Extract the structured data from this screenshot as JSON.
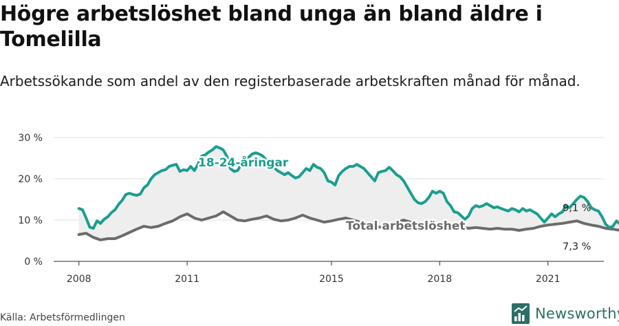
{
  "page": {
    "title": "Högre arbetslöshet bland unga än bland äldre i Tomelilla",
    "subtitle": "Arbetssökande som andel av den registerbaserade arbetskraften månad för månad.",
    "source": "Källa: Arbetsförmedlingen",
    "brand": "Newsworthy"
  },
  "colors": {
    "youth": "#1a9e8f",
    "total": "#6b6b6b",
    "fill": "#eeeeee",
    "grid": "#e1e1e1",
    "brand": "#2b6f66"
  },
  "icons": {
    "brand_logo": "newsworthy-logo-icon"
  },
  "chart_data": {
    "type": "line",
    "x_unit": "year (decimal)",
    "ylim": [
      0,
      30
    ],
    "y_ticks": [
      0,
      10,
      20,
      30
    ],
    "y_tick_labels": [
      "0 %",
      "10 %",
      "20 %",
      "30 %"
    ],
    "x_ticks": [
      2008,
      2011,
      2015,
      2018,
      2021
    ],
    "x_tick_labels": [
      "2008",
      "2011",
      "2015",
      "2018",
      "2021"
    ],
    "xlim": [
      2007.3,
      2022.55
    ],
    "grid": true,
    "area_between_series": true,
    "series": [
      {
        "name": "18-24-åringar",
        "end_label": "9,1 %",
        "points": [
          [
            2008.0,
            12.8
          ],
          [
            2008.1,
            12.5
          ],
          [
            2008.2,
            10.5
          ],
          [
            2008.3,
            8.3
          ],
          [
            2008.4,
            8.0
          ],
          [
            2008.5,
            9.8
          ],
          [
            2008.6,
            9.2
          ],
          [
            2008.7,
            10.2
          ],
          [
            2008.8,
            10.8
          ],
          [
            2008.9,
            11.8
          ],
          [
            2009.0,
            12.5
          ],
          [
            2009.1,
            13.8
          ],
          [
            2009.2,
            14.8
          ],
          [
            2009.3,
            16.2
          ],
          [
            2009.4,
            16.5
          ],
          [
            2009.5,
            16.2
          ],
          [
            2009.6,
            16.0
          ],
          [
            2009.7,
            16.3
          ],
          [
            2009.8,
            17.8
          ],
          [
            2009.9,
            18.5
          ],
          [
            2010.0,
            20.0
          ],
          [
            2010.1,
            21.0
          ],
          [
            2010.2,
            21.5
          ],
          [
            2010.3,
            22.0
          ],
          [
            2010.4,
            22.2
          ],
          [
            2010.5,
            23.0
          ],
          [
            2010.6,
            23.3
          ],
          [
            2010.7,
            23.5
          ],
          [
            2010.8,
            21.8
          ],
          [
            2010.9,
            22.2
          ],
          [
            2011.0,
            22.0
          ],
          [
            2011.1,
            23.0
          ],
          [
            2011.2,
            22.0
          ],
          [
            2011.3,
            23.5
          ],
          [
            2011.4,
            25.5
          ],
          [
            2011.5,
            25.8
          ],
          [
            2011.6,
            26.5
          ],
          [
            2011.7,
            27.0
          ],
          [
            2011.8,
            27.8
          ],
          [
            2011.9,
            27.5
          ],
          [
            2012.0,
            27.0
          ],
          [
            2012.1,
            25.5
          ],
          [
            2012.2,
            22.5
          ],
          [
            2012.3,
            21.8
          ],
          [
            2012.4,
            22.0
          ],
          [
            2012.5,
            23.5
          ],
          [
            2012.6,
            24.8
          ],
          [
            2012.7,
            25.2
          ],
          [
            2012.8,
            26.0
          ],
          [
            2012.9,
            26.3
          ],
          [
            2013.0,
            26.0
          ],
          [
            2013.1,
            25.5
          ],
          [
            2013.2,
            24.5
          ],
          [
            2013.3,
            23.5
          ],
          [
            2013.4,
            22.8
          ],
          [
            2013.5,
            22.0
          ],
          [
            2013.6,
            21.5
          ],
          [
            2013.7,
            21.0
          ],
          [
            2013.8,
            21.5
          ],
          [
            2013.9,
            20.8
          ],
          [
            2014.0,
            20.2
          ],
          [
            2014.1,
            20.5
          ],
          [
            2014.2,
            21.5
          ],
          [
            2014.3,
            22.5
          ],
          [
            2014.4,
            22.0
          ],
          [
            2014.5,
            23.5
          ],
          [
            2014.6,
            22.8
          ],
          [
            2014.7,
            22.5
          ],
          [
            2014.8,
            21.5
          ],
          [
            2014.9,
            19.5
          ],
          [
            2015.0,
            19.2
          ],
          [
            2015.1,
            18.5
          ],
          [
            2015.2,
            20.8
          ],
          [
            2015.3,
            21.8
          ],
          [
            2015.4,
            22.5
          ],
          [
            2015.5,
            23.0
          ],
          [
            2015.6,
            23.0
          ],
          [
            2015.7,
            23.5
          ],
          [
            2015.8,
            23.0
          ],
          [
            2015.9,
            22.5
          ],
          [
            2016.0,
            21.5
          ],
          [
            2016.1,
            20.5
          ],
          [
            2016.2,
            19.5
          ],
          [
            2016.3,
            21.5
          ],
          [
            2016.4,
            21.8
          ],
          [
            2016.5,
            22.0
          ],
          [
            2016.6,
            22.8
          ],
          [
            2016.7,
            22.0
          ],
          [
            2016.8,
            21.0
          ],
          [
            2016.9,
            20.5
          ],
          [
            2017.0,
            19.5
          ],
          [
            2017.1,
            18.0
          ],
          [
            2017.2,
            16.5
          ],
          [
            2017.3,
            15.0
          ],
          [
            2017.4,
            14.2
          ],
          [
            2017.5,
            14.0
          ],
          [
            2017.6,
            14.5
          ],
          [
            2017.7,
            15.5
          ],
          [
            2017.8,
            17.0
          ],
          [
            2017.9,
            16.5
          ],
          [
            2018.0,
            17.0
          ],
          [
            2018.1,
            16.5
          ],
          [
            2018.2,
            14.5
          ],
          [
            2018.3,
            13.5
          ],
          [
            2018.4,
            12.0
          ],
          [
            2018.5,
            11.8
          ],
          [
            2018.6,
            11.0
          ],
          [
            2018.7,
            10.2
          ],
          [
            2018.8,
            11.0
          ],
          [
            2018.9,
            12.8
          ],
          [
            2019.0,
            13.5
          ],
          [
            2019.1,
            13.2
          ],
          [
            2019.2,
            13.5
          ],
          [
            2019.3,
            14.0
          ],
          [
            2019.4,
            13.5
          ],
          [
            2019.5,
            13.0
          ],
          [
            2019.6,
            13.2
          ],
          [
            2019.7,
            12.8
          ],
          [
            2019.8,
            12.5
          ],
          [
            2019.9,
            12.2
          ],
          [
            2020.0,
            12.8
          ],
          [
            2020.1,
            12.5
          ],
          [
            2020.2,
            12.0
          ],
          [
            2020.3,
            12.8
          ],
          [
            2020.4,
            12.2
          ],
          [
            2020.5,
            12.5
          ],
          [
            2020.6,
            12.0
          ],
          [
            2020.7,
            11.5
          ],
          [
            2020.8,
            10.5
          ],
          [
            2020.9,
            9.5
          ],
          [
            2021.0,
            10.5
          ],
          [
            2021.1,
            11.5
          ],
          [
            2021.2,
            10.8
          ],
          [
            2021.3,
            11.5
          ],
          [
            2021.4,
            12.0
          ],
          [
            2021.5,
            13.5
          ],
          [
            2021.6,
            13.0
          ],
          [
            2021.7,
            14.0
          ],
          [
            2021.8,
            15.0
          ],
          [
            2021.9,
            15.8
          ],
          [
            2022.0,
            15.5
          ],
          [
            2022.1,
            14.5
          ],
          [
            2022.2,
            13.0
          ],
          [
            2022.3,
            12.5
          ],
          [
            2022.4,
            12.2
          ],
          [
            2022.5,
            10.8
          ],
          [
            2022.6,
            9.0
          ],
          [
            2022.7,
            8.2
          ],
          [
            2022.8,
            8.5
          ],
          [
            2022.9,
            9.8
          ],
          [
            2023.0,
            9.0
          ],
          [
            2023.1,
            8.5
          ],
          [
            2023.2,
            8.6
          ],
          [
            2023.3,
            9.1
          ]
        ]
      },
      {
        "name": "Total arbetslöshet",
        "end_label": "7,3 %",
        "points": [
          [
            2008.0,
            6.5
          ],
          [
            2008.2,
            6.8
          ],
          [
            2008.4,
            5.8
          ],
          [
            2008.6,
            5.2
          ],
          [
            2008.8,
            5.5
          ],
          [
            2009.0,
            5.5
          ],
          [
            2009.2,
            6.2
          ],
          [
            2009.4,
            7.0
          ],
          [
            2009.6,
            7.8
          ],
          [
            2009.8,
            8.5
          ],
          [
            2010.0,
            8.2
          ],
          [
            2010.2,
            8.5
          ],
          [
            2010.4,
            9.2
          ],
          [
            2010.6,
            9.8
          ],
          [
            2010.8,
            10.8
          ],
          [
            2011.0,
            11.5
          ],
          [
            2011.2,
            10.5
          ],
          [
            2011.4,
            10.0
          ],
          [
            2011.6,
            10.5
          ],
          [
            2011.8,
            11.0
          ],
          [
            2012.0,
            12.0
          ],
          [
            2012.2,
            11.0
          ],
          [
            2012.4,
            10.0
          ],
          [
            2012.6,
            9.8
          ],
          [
            2012.8,
            10.2
          ],
          [
            2013.0,
            10.5
          ],
          [
            2013.2,
            11.0
          ],
          [
            2013.4,
            10.2
          ],
          [
            2013.6,
            9.8
          ],
          [
            2013.8,
            10.0
          ],
          [
            2014.0,
            10.5
          ],
          [
            2014.2,
            11.2
          ],
          [
            2014.4,
            10.5
          ],
          [
            2014.6,
            10.0
          ],
          [
            2014.8,
            9.5
          ],
          [
            2015.0,
            9.8
          ],
          [
            2015.2,
            10.2
          ],
          [
            2015.4,
            10.5
          ],
          [
            2015.6,
            10.0
          ],
          [
            2015.8,
            9.5
          ],
          [
            2016.0,
            9.0
          ],
          [
            2016.2,
            8.5
          ],
          [
            2016.4,
            8.2
          ],
          [
            2016.6,
            9.0
          ],
          [
            2016.8,
            9.5
          ],
          [
            2017.0,
            10.0
          ],
          [
            2017.2,
            9.5
          ],
          [
            2017.4,
            9.0
          ],
          [
            2017.6,
            8.8
          ],
          [
            2017.8,
            9.0
          ],
          [
            2018.0,
            9.0
          ],
          [
            2018.2,
            8.8
          ],
          [
            2018.4,
            8.5
          ],
          [
            2018.6,
            8.3
          ],
          [
            2018.8,
            8.0
          ],
          [
            2019.0,
            8.2
          ],
          [
            2019.2,
            8.0
          ],
          [
            2019.4,
            7.8
          ],
          [
            2019.6,
            8.0
          ],
          [
            2019.8,
            7.8
          ],
          [
            2020.0,
            7.8
          ],
          [
            2020.2,
            7.5
          ],
          [
            2020.4,
            7.8
          ],
          [
            2020.6,
            8.0
          ],
          [
            2020.8,
            8.5
          ],
          [
            2021.0,
            8.8
          ],
          [
            2021.2,
            9.0
          ],
          [
            2021.4,
            9.2
          ],
          [
            2021.6,
            9.5
          ],
          [
            2021.8,
            9.8
          ],
          [
            2022.0,
            9.2
          ],
          [
            2022.2,
            8.8
          ],
          [
            2022.4,
            8.5
          ],
          [
            2022.6,
            8.0
          ],
          [
            2022.8,
            7.8
          ],
          [
            2023.0,
            7.5
          ],
          [
            2023.2,
            7.4
          ],
          [
            2023.3,
            7.3
          ]
        ]
      }
    ]
  }
}
